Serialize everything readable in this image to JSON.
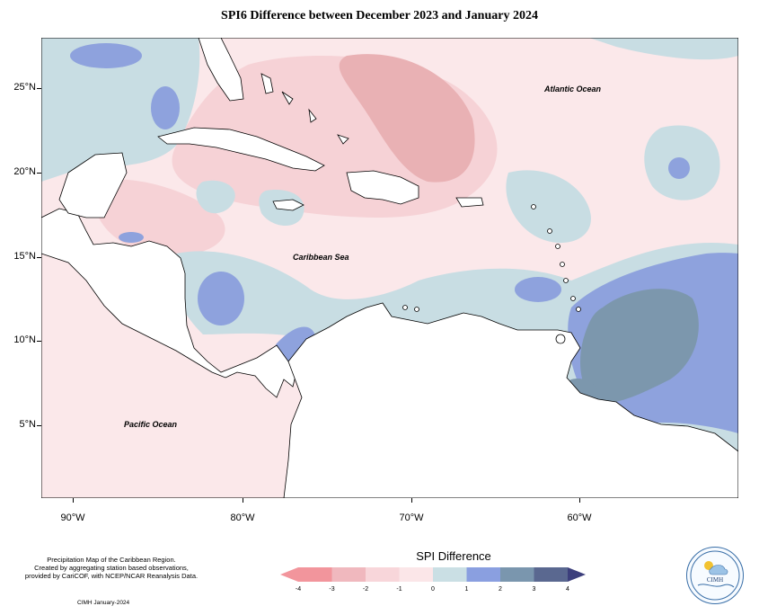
{
  "title": "SPI6 Difference between December 2023 and January 2024",
  "map": {
    "latitude_labels": [
      "25°N",
      "20°N",
      "15°N",
      "10°N",
      "5°N"
    ],
    "longitude_labels": [
      "90°W",
      "80°W",
      "70°W",
      "60°W"
    ],
    "ocean_labels": {
      "atlantic": "Atlantic Ocean",
      "caribbean": "Caribbean Sea",
      "pacific": "Pacific Ocean"
    },
    "colors": {
      "ocean_land_background": "#f9e6e8",
      "strong_negative": "#e8a8ac",
      "moderate_negative": "#f3cdd2",
      "slight_negative": "#fbe1e5",
      "slight_positive": "#c7dde2",
      "positive_1_2": "#8fa0de",
      "positive_2_3": "#7d98ae",
      "land_outline": "#000000"
    }
  },
  "credits": {
    "line1": "Precipitation Map of the Caribbean Region.",
    "line2": "Created by aggregating station based observations,",
    "line3": "provided by CariCOF, with NCEP/NCAR Reanalysis Data.",
    "footer": "CIMH January-2024"
  },
  "legend": {
    "title": "SPI Difference",
    "ticks": [
      "-4",
      "-3",
      "-2",
      "-1",
      "0",
      "1",
      "2",
      "3",
      "4"
    ],
    "colors": [
      "#f2959c",
      "#f0b8be",
      "#f8d6da",
      "#fbe6e8",
      "#cadfe4",
      "#8a9fe0",
      "#7a96ae",
      "#5a6890",
      "#3c3f7c"
    ]
  },
  "logo": {
    "text": "CIMH"
  }
}
